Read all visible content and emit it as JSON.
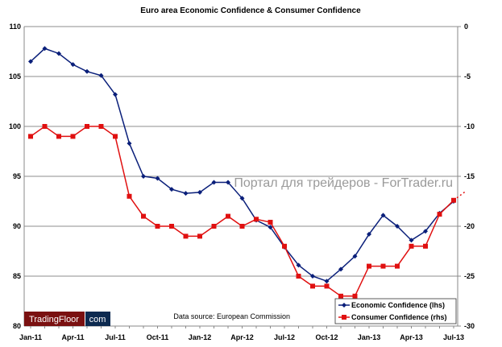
{
  "chart_data": {
    "type": "line",
    "title": "Euro area Economic Confidence & Consumer Confidence",
    "x": [
      "Jan-11",
      "Feb-11",
      "Mar-11",
      "Apr-11",
      "May-11",
      "Jun-11",
      "Jul-11",
      "Aug-11",
      "Sep-11",
      "Oct-11",
      "Nov-11",
      "Dec-11",
      "Jan-12",
      "Feb-12",
      "Mar-12",
      "Apr-12",
      "May-12",
      "Jun-12",
      "Jul-12",
      "Aug-12",
      "Sep-12",
      "Oct-12",
      "Nov-12",
      "Dec-12",
      "Jan-13",
      "Feb-13",
      "Mar-13",
      "Apr-13",
      "May-13",
      "Jun-13",
      "Jul-13"
    ],
    "xtick_labels": [
      "Jan-11",
      "Apr-11",
      "Jul-11",
      "Oct-11",
      "Jan-12",
      "Apr-12",
      "Jul-12",
      "Oct-12",
      "Jan-13",
      "Apr-13",
      "Jul-13"
    ],
    "ylim_left": [
      80,
      110
    ],
    "ylim_right": [
      -30,
      0
    ],
    "yticks_left": [
      "110",
      "105",
      "100",
      "95",
      "90",
      "85",
      "80"
    ],
    "yticks_right": [
      "0",
      "-5",
      "-10",
      "-15",
      "-20",
      "-25",
      "-30"
    ],
    "grid": true,
    "legend_position": "bottom-right",
    "series": [
      {
        "name": "Economic Confidence (lhs)",
        "axis": "left",
        "color": "#0a1f7a",
        "marker": "diamond",
        "values": [
          106.5,
          107.8,
          107.3,
          106.2,
          105.5,
          105.1,
          103.2,
          98.3,
          95.0,
          94.8,
          93.7,
          93.3,
          93.4,
          94.4,
          94.4,
          92.8,
          90.6,
          89.9,
          87.9,
          86.1,
          85.0,
          84.5,
          85.7,
          87.0,
          89.2,
          91.1,
          90.0,
          88.6,
          89.5,
          91.3,
          92.5
        ]
      },
      {
        "name": "Consumer Confidence (rhs)",
        "axis": "right",
        "color": "#e01010",
        "marker": "square",
        "values": [
          -11,
          -10,
          -11,
          -11,
          -10,
          -10,
          -11,
          -17,
          -19,
          -20,
          -20,
          -21,
          -21,
          -20,
          -19,
          -20,
          -19.3,
          -19.6,
          -22,
          -25,
          -26,
          -26,
          -27,
          -27,
          -24,
          -24,
          -24,
          -22,
          -22,
          -18.8,
          -17.4
        ]
      }
    ],
    "annotation": "Data source: European Commission"
  },
  "watermark": "Портал для трейдеров - ForTrader.ru",
  "logo": {
    "left": "TradingFloor",
    "right": "com"
  }
}
